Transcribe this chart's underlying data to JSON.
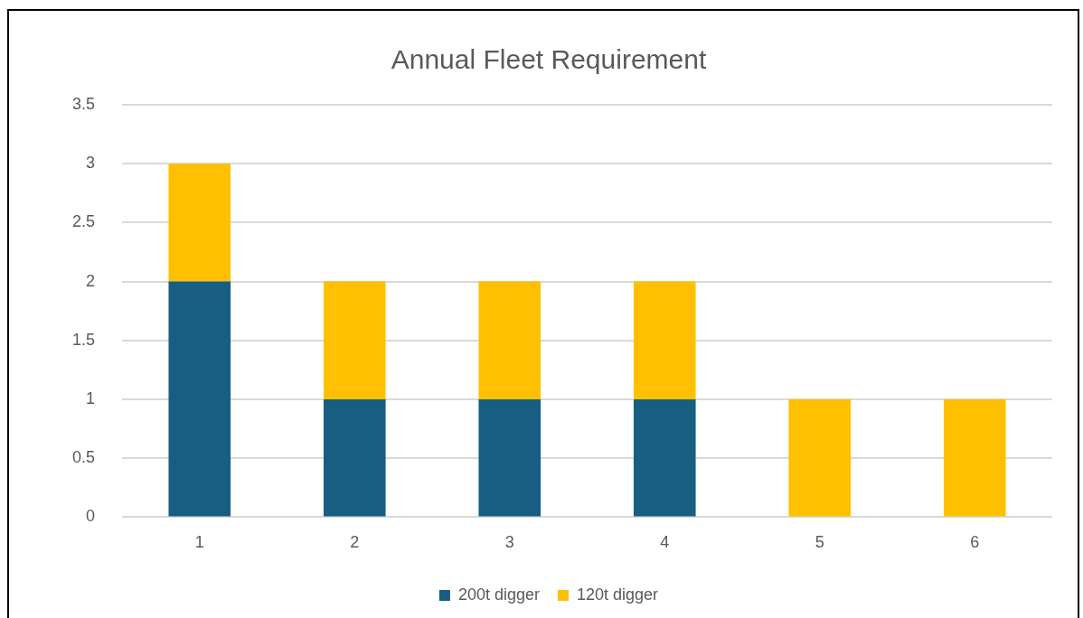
{
  "chart_data": {
    "type": "bar",
    "title": "Annual Fleet Requirement",
    "categories": [
      "1",
      "2",
      "3",
      "4",
      "5",
      "6"
    ],
    "stacked": true,
    "series": [
      {
        "name": "200t digger",
        "color": "#175e82",
        "values": [
          2,
          1,
          1,
          1,
          0,
          0
        ]
      },
      {
        "name": "120t digger",
        "color": "#ffc000",
        "values": [
          1,
          1,
          1,
          1,
          1,
          1
        ]
      }
    ],
    "ylim": [
      0,
      3.5
    ],
    "yticks": [
      0,
      0.5,
      1,
      1.5,
      2,
      2.5,
      3,
      3.5
    ],
    "grid": "y",
    "legend": "bottom"
  }
}
